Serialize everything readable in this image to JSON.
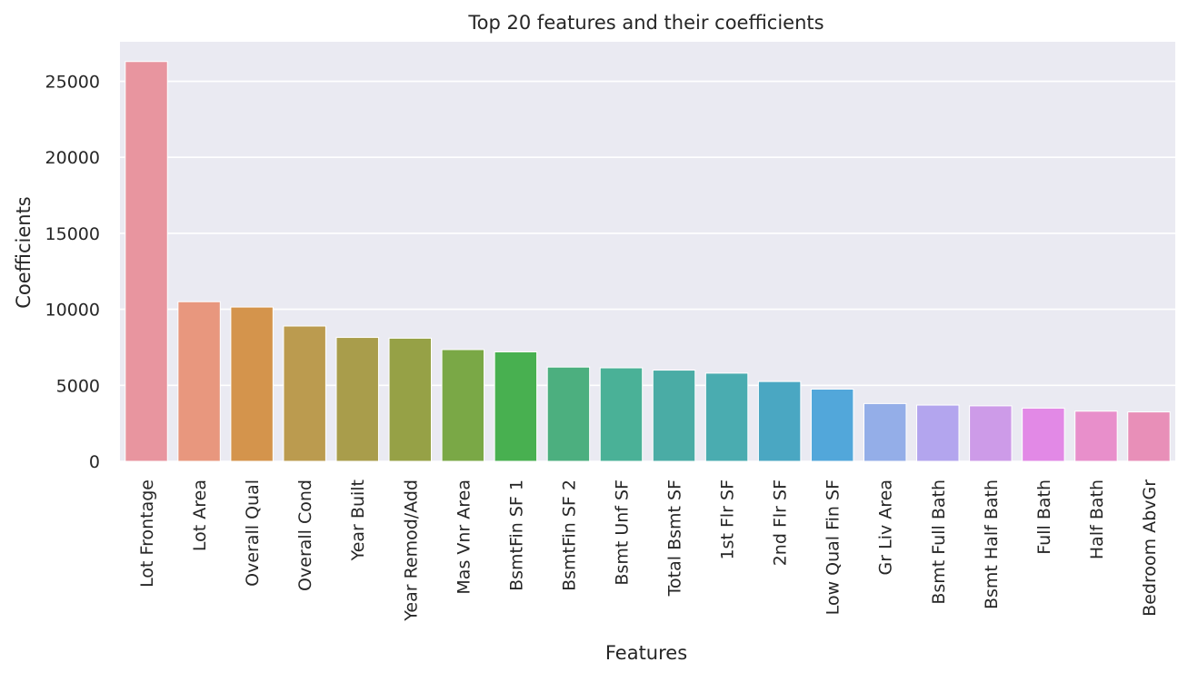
{
  "chart_data": {
    "type": "bar",
    "title": "Top 20 features and their coefficients",
    "xlabel": "Features",
    "ylabel": "Coefficients",
    "ylim": [
      0,
      27600
    ],
    "yticks": [
      0,
      5000,
      10000,
      15000,
      20000,
      25000
    ],
    "ytick_labels": [
      "0",
      "5000",
      "10000",
      "15000",
      "20000",
      "25000"
    ],
    "grid": true,
    "legend": "none",
    "categories": [
      "Lot Frontage",
      "Lot Area",
      "Overall Qual",
      "Overall Cond",
      "Year Built",
      "Year Remod/Add",
      "Mas Vnr Area",
      "BsmtFin SF 1",
      "BsmtFin SF 2",
      "Bsmt Unf SF",
      "Total Bsmt SF",
      "1st Flr SF",
      "2nd Flr SF",
      "Low Qual Fin SF",
      "Gr Liv Area",
      "Bsmt Full Bath",
      "Bsmt Half Bath",
      "Full Bath",
      "Half Bath",
      "Bedroom AbvGr"
    ],
    "values": [
      26300,
      10500,
      10150,
      8900,
      8150,
      8100,
      7350,
      7200,
      6200,
      6150,
      6000,
      5800,
      5250,
      4750,
      3800,
      3700,
      3650,
      3500,
      3300,
      3250
    ],
    "colors": [
      "#e8959f",
      "#e8977e",
      "#d4944c",
      "#bb9b4f",
      "#a99d4b",
      "#96a146",
      "#7aa846",
      "#48b050",
      "#4caf7f",
      "#4ab197",
      "#4aaca5",
      "#4aacb0",
      "#4aa7c2",
      "#52a7da",
      "#94aee8",
      "#b3a5ee",
      "#cd9be8",
      "#e289e6",
      "#e88fcb",
      "#e88fb8"
    ],
    "background": "#eaeaf2",
    "grid_color": "#ffffff"
  }
}
